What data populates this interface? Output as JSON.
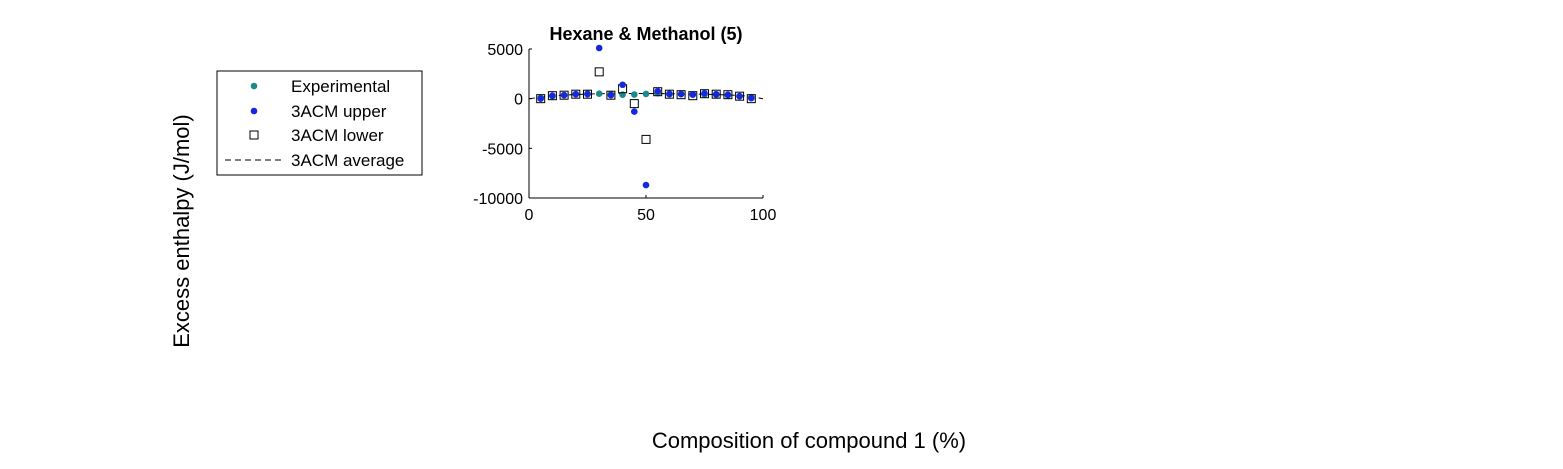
{
  "chart_data": {
    "type": "scatter",
    "title": "Hexane & Methanol (5)",
    "xlabel": "Composition of compound 1 (%)",
    "ylabel": "Excess enthalpy (J/mol)",
    "xlim": [
      0,
      100
    ],
    "ylim": [
      -10000,
      5000
    ],
    "xticks": [
      "0",
      "50",
      "100"
    ],
    "yticks": [
      "5000",
      "0",
      "-5000",
      "-10000"
    ],
    "grid": false,
    "legend_position": "left",
    "series": [
      {
        "name": "Experimental",
        "marker": "filled-circle",
        "color": "#1a8a8a",
        "x": [
          5,
          10,
          15,
          20,
          25,
          30,
          35,
          40,
          45,
          50,
          55,
          60,
          65,
          70,
          75,
          80,
          85,
          90,
          95
        ],
        "y": [
          100,
          250,
          350,
          450,
          500,
          500,
          450,
          400,
          420,
          480,
          550,
          500,
          480,
          450,
          420,
          380,
          330,
          250,
          150
        ]
      },
      {
        "name": "3ACM upper",
        "marker": "filled-circle",
        "color": "#1428e0",
        "x": [
          5,
          10,
          15,
          20,
          25,
          30,
          35,
          40,
          45,
          50,
          55,
          60,
          65,
          70,
          75,
          80,
          85,
          90,
          95
        ],
        "y": [
          0,
          300,
          350,
          450,
          450,
          5100,
          350,
          1400,
          -1300,
          -8700,
          750,
          450,
          450,
          400,
          550,
          450,
          400,
          250,
          50
        ]
      },
      {
        "name": "3ACM lower",
        "marker": "open-square",
        "color": "#000000",
        "x": [
          5,
          10,
          15,
          20,
          25,
          30,
          35,
          40,
          45,
          50,
          55,
          60,
          65,
          70,
          75,
          80,
          85,
          90,
          95
        ],
        "y": [
          0,
          300,
          350,
          450,
          450,
          2700,
          350,
          1000,
          -500,
          -4100,
          700,
          450,
          400,
          300,
          500,
          450,
          400,
          250,
          0
        ]
      },
      {
        "name": "3ACM average",
        "line": "dashed",
        "color": "#000000",
        "x": [
          0,
          5,
          10,
          20,
          30,
          40,
          50,
          60,
          70,
          80,
          90,
          95,
          100
        ],
        "y": [
          0,
          150,
          300,
          420,
          500,
          520,
          520,
          500,
          470,
          420,
          330,
          230,
          0
        ]
      }
    ]
  }
}
